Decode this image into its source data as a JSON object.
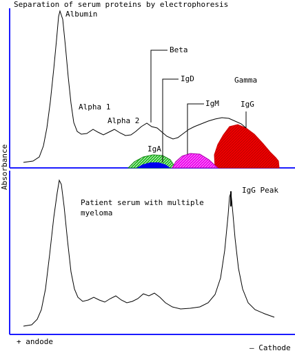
{
  "title": "Separation of serum proteins by electrophoresis",
  "y_axis_label": "Absorbance",
  "x_axis": {
    "left_label": "+ andode",
    "right_label": "— Cathode"
  },
  "top_panel": {
    "labels": {
      "albumin": "Albumin",
      "alpha1": "Alpha 1",
      "alpha2": "Alpha 2",
      "beta": "Beta",
      "igd": "IgD",
      "igm": "IgM",
      "igg": "IgG",
      "gamma": "Gamma",
      "iga": "IgA"
    },
    "colors": {
      "iga": "#22bb22",
      "igd": "#0000ee",
      "igm": "#ee00ee",
      "igg": "#ee0000",
      "axis": "#1a1aff"
    }
  },
  "bottom_panel": {
    "caption_line1": "Patient serum with multiple",
    "caption_line2": "myeloma",
    "peak_label": "IgG Peak"
  }
}
